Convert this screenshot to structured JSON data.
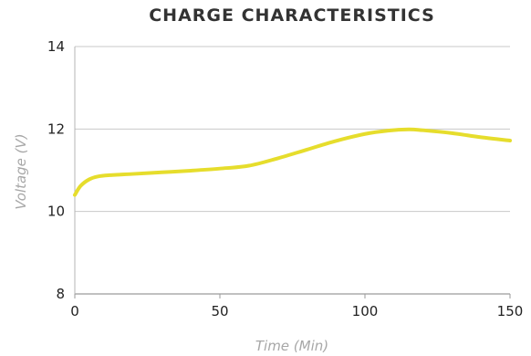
{
  "chart_data": {
    "type": "line",
    "title": "CHARGE CHARACTERISTICS",
    "xlabel": "Time (Min)",
    "ylabel": "Voltage (V)",
    "xlim": [
      0,
      150
    ],
    "ylim": [
      8,
      14
    ],
    "xticks": [
      0,
      50,
      100,
      150
    ],
    "yticks": [
      8,
      10,
      12,
      14
    ],
    "grid": true,
    "series": [
      {
        "color": "#e6dd2c",
        "x": [
          0,
          2,
          5,
          8,
          12,
          20,
          30,
          40,
          50,
          60,
          70,
          80,
          90,
          100,
          108,
          115,
          120,
          130,
          140,
          150
        ],
        "y": [
          10.4,
          10.62,
          10.78,
          10.85,
          10.88,
          10.91,
          10.95,
          10.99,
          11.04,
          11.11,
          11.29,
          11.5,
          11.71,
          11.88,
          11.96,
          11.99,
          11.97,
          11.9,
          11.8,
          11.72
        ]
      }
    ]
  }
}
